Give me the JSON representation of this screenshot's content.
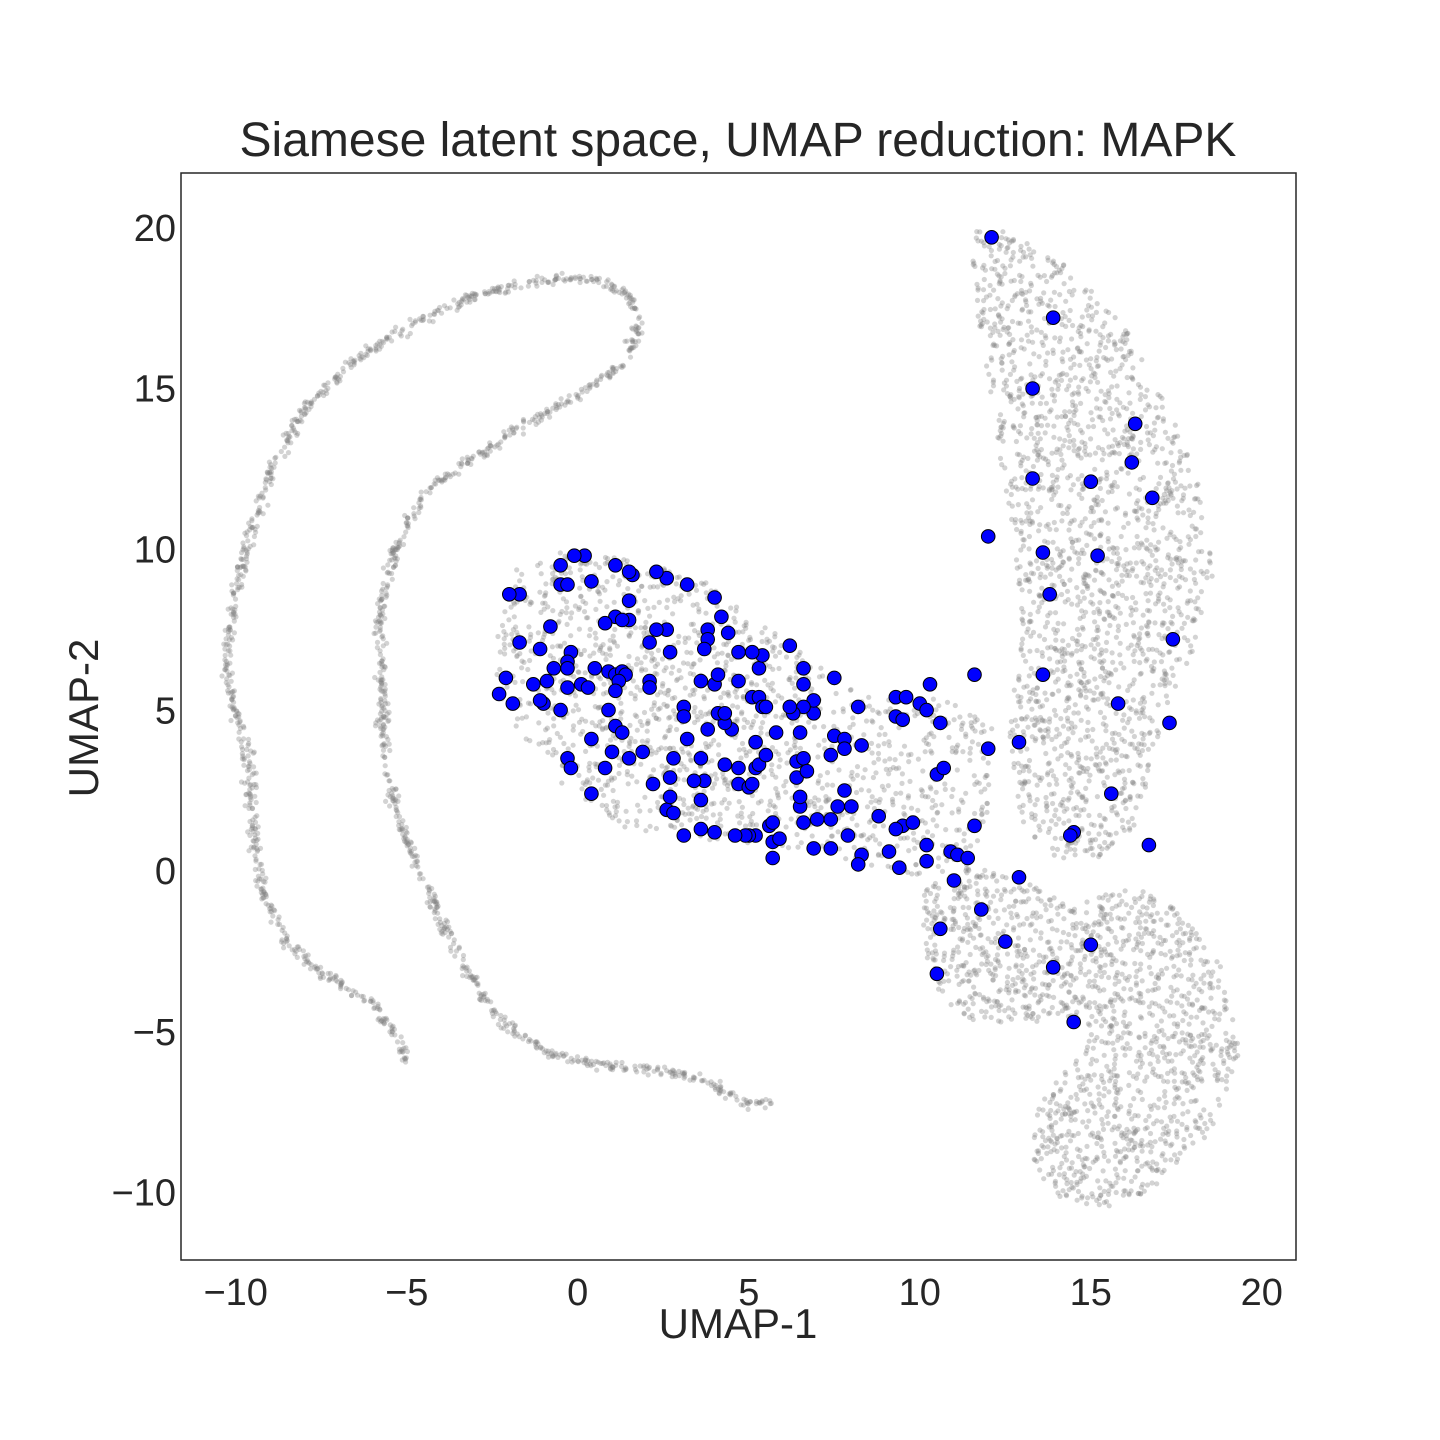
{
  "chart_data": {
    "type": "scatter",
    "title": "Siamese latent space, UMAP reduction: MAPK",
    "xlabel": "UMAP-1",
    "ylabel": "UMAP-2",
    "xlim": [
      -11.6,
      21.0
    ],
    "ylim": [
      -12.0,
      21.8
    ],
    "xticks": [
      -10,
      -5,
      0,
      5,
      10,
      15,
      20
    ],
    "yticks": [
      -10,
      -5,
      0,
      5,
      10,
      15,
      20
    ],
    "xtick_labels": [
      "−10",
      "−5",
      "0",
      "5",
      "10",
      "15",
      "20"
    ],
    "ytick_labels": [
      "−10",
      "−5",
      "0",
      "5",
      "10",
      "15",
      "20"
    ],
    "grid": false,
    "colors": {
      "background_points": "#808080",
      "highlight_points": "#0000ff",
      "highlight_edge": "#000000"
    },
    "series": [
      {
        "role": "background",
        "description_of_shapes": {
          "outer_arc": [
            [
              -5.0,
              -5.9
            ],
            [
              -5.2,
              -5.2
            ],
            [
              -6.0,
              -4.0
            ],
            [
              -7.5,
              -3.1
            ],
            [
              -8.5,
              -2.1
            ],
            [
              -9.2,
              -0.5
            ],
            [
              -9.5,
              1.5
            ],
            [
              -9.6,
              3.5
            ],
            [
              -10.0,
              5.0
            ],
            [
              -10.3,
              6.5
            ],
            [
              -10.1,
              8.2
            ],
            [
              -9.6,
              10.5
            ],
            [
              -9.0,
              12.5
            ],
            [
              -8.0,
              14.5
            ],
            [
              -6.5,
              16.0
            ],
            [
              -5.0,
              17.0
            ],
            [
              -3.0,
              18.0
            ],
            [
              -1.0,
              18.5
            ],
            [
              0.5,
              18.5
            ],
            [
              1.5,
              18.0
            ],
            [
              1.8,
              17.0
            ],
            [
              1.3,
              15.8
            ],
            [
              0.0,
              14.9
            ],
            [
              -1.5,
              14.0
            ],
            [
              -3.0,
              13.0
            ],
            [
              -4.5,
              11.8
            ],
            [
              -5.4,
              10.0
            ],
            [
              -5.8,
              8.0
            ],
            [
              -5.7,
              5.5
            ],
            [
              -5.6,
              3.0
            ],
            [
              -5.0,
              1.0
            ],
            [
              -4.2,
              -1.0
            ],
            [
              -3.3,
              -2.9
            ],
            [
              -2.3,
              -4.5
            ],
            [
              -1.0,
              -5.5
            ],
            [
              0.5,
              -5.9
            ],
            [
              2.5,
              -6.1
            ],
            [
              3.8,
              -6.4
            ],
            [
              4.8,
              -7.1
            ],
            [
              5.7,
              -7.1
            ]
          ],
          "middle_cluster_center": [
            3.5,
            4.5
          ],
          "right_cluster_regions": "upper arm x 12 to 18.5, y 0 to 20; lower lobe x 10 to 19, y -10.5 to 0"
        }
      },
      {
        "role": "highlight",
        "name": "MAPK",
        "points": [
          [
            12.1,
            19.8
          ],
          [
            13.9,
            17.3
          ],
          [
            13.3,
            15.1
          ],
          [
            16.3,
            14.0
          ],
          [
            16.2,
            12.8
          ],
          [
            13.3,
            12.3
          ],
          [
            15.0,
            12.2
          ],
          [
            16.8,
            11.7
          ],
          [
            12.0,
            10.5
          ],
          [
            13.6,
            10.0
          ],
          [
            15.2,
            9.9
          ],
          [
            13.8,
            8.7
          ],
          [
            17.4,
            7.3
          ],
          [
            13.6,
            6.2
          ],
          [
            11.6,
            6.2
          ],
          [
            15.8,
            5.3
          ],
          [
            17.3,
            4.7
          ],
          [
            12.0,
            3.9
          ],
          [
            12.9,
            4.1
          ],
          [
            15.6,
            2.5
          ],
          [
            11.6,
            1.5
          ],
          [
            14.5,
            1.3
          ],
          [
            14.4,
            1.2
          ],
          [
            16.7,
            0.9
          ],
          [
            12.9,
            -0.1
          ],
          [
            11.8,
            -1.1
          ],
          [
            12.5,
            -2.1
          ],
          [
            15.0,
            -2.2
          ],
          [
            10.6,
            -1.7
          ],
          [
            10.5,
            -3.1
          ],
          [
            13.9,
            -2.9
          ],
          [
            14.5,
            -4.6
          ],
          [
            11.0,
            -0.2
          ],
          [
            10.3,
            5.9
          ],
          [
            10.6,
            4.7
          ],
          [
            10.5,
            3.1
          ],
          [
            10.7,
            3.3
          ],
          [
            9.3,
            5.5
          ],
          [
            9.6,
            5.5
          ],
          [
            10.0,
            5.3
          ],
          [
            10.2,
            5.1
          ],
          [
            9.3,
            4.9
          ],
          [
            9.5,
            4.8
          ],
          [
            10.2,
            0.9
          ],
          [
            10.2,
            0.4
          ],
          [
            10.9,
            0.7
          ],
          [
            11.1,
            0.6
          ],
          [
            11.4,
            0.5
          ],
          [
            9.5,
            1.5
          ],
          [
            9.8,
            1.6
          ],
          [
            9.3,
            1.4
          ],
          [
            8.8,
            1.8
          ],
          [
            9.1,
            0.7
          ],
          [
            9.4,
            0.2
          ],
          [
            8.3,
            0.6
          ],
          [
            8.2,
            0.3
          ],
          [
            8.3,
            4.0
          ],
          [
            8.2,
            5.2
          ],
          [
            7.5,
            6.1
          ],
          [
            7.5,
            4.3
          ],
          [
            7.8,
            4.2
          ],
          [
            7.8,
            3.9
          ],
          [
            7.4,
            3.7
          ],
          [
            7.8,
            2.6
          ],
          [
            7.6,
            2.1
          ],
          [
            8.0,
            2.1
          ],
          [
            7.4,
            1.7
          ],
          [
            7.9,
            1.2
          ],
          [
            7.4,
            0.8
          ],
          [
            6.9,
            0.8
          ],
          [
            7.0,
            1.7
          ],
          [
            6.6,
            1.6
          ],
          [
            6.5,
            2.1
          ],
          [
            6.5,
            2.4
          ],
          [
            6.4,
            3.0
          ],
          [
            6.4,
            3.5
          ],
          [
            6.6,
            3.6
          ],
          [
            6.7,
            3.2
          ],
          [
            6.9,
            5.0
          ],
          [
            6.9,
            5.4
          ],
          [
            6.6,
            5.2
          ],
          [
            6.6,
            5.9
          ],
          [
            6.6,
            6.4
          ],
          [
            6.2,
            7.1
          ],
          [
            6.5,
            4.4
          ],
          [
            6.3,
            5.0
          ],
          [
            6.2,
            5.2
          ],
          [
            5.8,
            4.4
          ],
          [
            5.6,
            1.5
          ],
          [
            5.7,
            1.6
          ],
          [
            5.7,
            1.0
          ],
          [
            5.9,
            1.1
          ],
          [
            5.7,
            0.5
          ],
          [
            5.2,
            1.2
          ],
          [
            5.0,
            1.2
          ],
          [
            4.9,
            1.2
          ],
          [
            4.6,
            1.2
          ],
          [
            4.0,
            1.3
          ],
          [
            3.6,
            1.4
          ],
          [
            3.1,
            1.2
          ],
          [
            2.6,
            2.0
          ],
          [
            2.8,
            1.9
          ],
          [
            2.7,
            2.4
          ],
          [
            3.6,
            2.3
          ],
          [
            3.7,
            2.9
          ],
          [
            3.4,
            2.9
          ],
          [
            2.7,
            3.0
          ],
          [
            2.2,
            2.8
          ],
          [
            2.8,
            3.6
          ],
          [
            3.6,
            3.6
          ],
          [
            3.2,
            4.2
          ],
          [
            4.3,
            3.4
          ],
          [
            4.7,
            3.3
          ],
          [
            5.2,
            3.3
          ],
          [
            5.3,
            3.4
          ],
          [
            5.5,
            3.7
          ],
          [
            5.2,
            4.1
          ],
          [
            4.7,
            2.8
          ],
          [
            5.0,
            2.7
          ],
          [
            5.1,
            2.8
          ],
          [
            4.5,
            4.5
          ],
          [
            4.3,
            4.7
          ],
          [
            4.1,
            5.0
          ],
          [
            4.3,
            5.0
          ],
          [
            4.7,
            6.0
          ],
          [
            5.1,
            5.5
          ],
          [
            5.3,
            5.5
          ],
          [
            5.4,
            5.2
          ],
          [
            5.5,
            5.2
          ],
          [
            5.3,
            6.4
          ],
          [
            5.4,
            6.8
          ],
          [
            5.1,
            6.9
          ],
          [
            4.7,
            6.9
          ],
          [
            4.4,
            7.5
          ],
          [
            4.2,
            8.0
          ],
          [
            4.0,
            8.6
          ],
          [
            3.8,
            7.6
          ],
          [
            3.8,
            7.3
          ],
          [
            3.7,
            7.0
          ],
          [
            3.6,
            6.0
          ],
          [
            4.0,
            5.9
          ],
          [
            4.1,
            6.2
          ],
          [
            3.1,
            5.2
          ],
          [
            3.1,
            4.9
          ],
          [
            3.8,
            4.5
          ],
          [
            2.7,
            6.9
          ],
          [
            2.6,
            7.6
          ],
          [
            2.3,
            7.6
          ],
          [
            2.1,
            7.2
          ],
          [
            2.1,
            6.0
          ],
          [
            2.1,
            5.8
          ],
          [
            3.2,
            9.0
          ],
          [
            2.6,
            9.2
          ],
          [
            2.3,
            9.4
          ],
          [
            1.6,
            9.3
          ],
          [
            1.5,
            9.4
          ],
          [
            1.1,
            9.6
          ],
          [
            1.5,
            8.5
          ],
          [
            1.1,
            8.0
          ],
          [
            1.5,
            7.9
          ],
          [
            1.3,
            7.9
          ],
          [
            0.8,
            7.8
          ],
          [
            0.4,
            9.1
          ],
          [
            0.2,
            9.9
          ],
          [
            -0.1,
            9.9
          ],
          [
            -0.5,
            9.6
          ],
          [
            -0.5,
            9.0
          ],
          [
            -0.3,
            9.0
          ],
          [
            -1.7,
            8.7
          ],
          [
            -2.0,
            8.7
          ],
          [
            -0.8,
            7.7
          ],
          [
            -1.7,
            7.2
          ],
          [
            -1.1,
            7.0
          ],
          [
            -0.2,
            6.9
          ],
          [
            -0.3,
            6.6
          ],
          [
            -0.3,
            6.4
          ],
          [
            -0.7,
            6.4
          ],
          [
            -0.9,
            6.0
          ],
          [
            -1.3,
            5.9
          ],
          [
            -0.3,
            5.8
          ],
          [
            0.1,
            5.9
          ],
          [
            0.3,
            5.8
          ],
          [
            0.5,
            6.4
          ],
          [
            0.9,
            6.3
          ],
          [
            1.1,
            6.2
          ],
          [
            1.3,
            6.3
          ],
          [
            1.4,
            6.2
          ],
          [
            1.2,
            6.0
          ],
          [
            1.1,
            5.7
          ],
          [
            -0.5,
            5.1
          ],
          [
            -1.0,
            5.3
          ],
          [
            -1.1,
            5.4
          ],
          [
            -1.9,
            5.3
          ],
          [
            -2.1,
            6.1
          ],
          [
            -2.3,
            5.6
          ],
          [
            0.9,
            5.1
          ],
          [
            1.1,
            4.6
          ],
          [
            1.3,
            4.4
          ],
          [
            0.4,
            4.2
          ],
          [
            1.0,
            3.8
          ],
          [
            1.5,
            3.6
          ],
          [
            1.9,
            3.8
          ],
          [
            -0.3,
            3.6
          ],
          [
            -0.2,
            3.3
          ],
          [
            0.8,
            3.3
          ],
          [
            0.4,
            2.5
          ]
        ]
      }
    ]
  }
}
